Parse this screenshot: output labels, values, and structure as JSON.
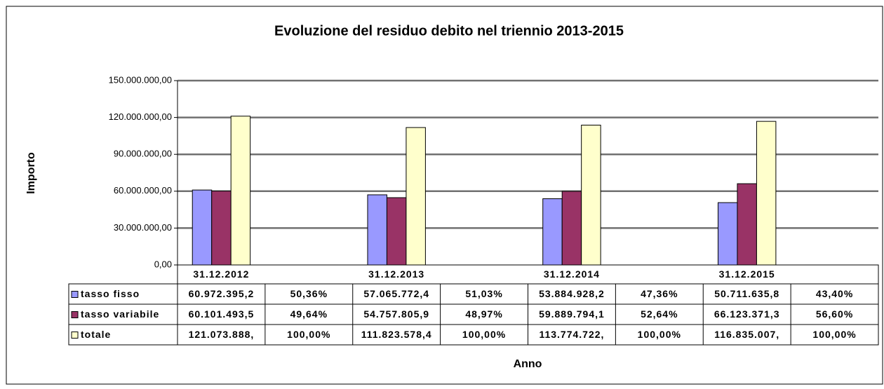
{
  "chart_data": {
    "type": "bar",
    "title": "Evoluzione del residuo debito nel triennio 2013-2015",
    "x_label": "Anno",
    "y_label": "Importo",
    "categories": [
      "31.12.2012",
      null,
      "31.12.2013",
      null,
      "31.12.2014",
      null,
      "31.12.2015",
      null
    ],
    "series": [
      {
        "name": "tasso fisso",
        "color": "#9999ff",
        "values": [
          60972395.2,
          50.36,
          57065772.4,
          51.03,
          53884928.2,
          47.36,
          50711635.8,
          43.4
        ],
        "value_labels": [
          "60.972.395,2",
          "50,36%",
          "57.065.772,4",
          "51,03%",
          "53.884.928,2",
          "47,36%",
          "50.711.635,8",
          "43,40%"
        ]
      },
      {
        "name": "tasso variabile",
        "color": "#993366",
        "values": [
          60101493.5,
          49.64,
          54757805.9,
          48.97,
          59889794.1,
          52.64,
          66123371.3,
          56.6
        ],
        "value_labels": [
          "60.101.493,5",
          "49,64%",
          "54.757.805,9",
          "48,97%",
          "59.889.794,1",
          "52,64%",
          "66.123.371,3",
          "56,60%"
        ]
      },
      {
        "name": "totale",
        "color": "#ffffcc",
        "values": [
          121073888,
          100,
          111823578.4,
          100,
          113774722,
          100,
          116835007,
          100
        ],
        "value_labels": [
          "121.073.888,",
          "100,00%",
          "111.823.578,4",
          "100,00%",
          "113.774.722,",
          "100,00%",
          "116.835.007,",
          "100,00%"
        ]
      }
    ],
    "ylim": [
      0,
      150000000
    ],
    "yticks": [
      {
        "value": 0,
        "label": "0,00"
      },
      {
        "value": 30000000,
        "label": "30.000.000,00"
      },
      {
        "value": 60000000,
        "label": "60.000.000,00"
      },
      {
        "value": 90000000,
        "label": "90.000.000,00"
      },
      {
        "value": 120000000,
        "label": "120.000.000,00"
      },
      {
        "value": 150000000,
        "label": "150.000.000,00"
      }
    ],
    "grid": true
  }
}
